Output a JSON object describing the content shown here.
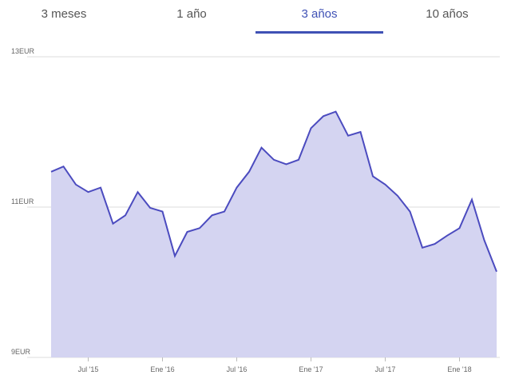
{
  "tabs": {
    "items": [
      "3 meses",
      "1 año",
      "3 años",
      "10 años"
    ],
    "active": 2
  },
  "chart_data": {
    "type": "area",
    "x": [
      "2015-04",
      "2015-05",
      "2015-06",
      "2015-07",
      "2015-08",
      "2015-09",
      "2015-10",
      "2015-11",
      "2015-12",
      "2016-01",
      "2016-02",
      "2016-03",
      "2016-04",
      "2016-05",
      "2016-06",
      "2016-07",
      "2016-08",
      "2016-09",
      "2016-10",
      "2016-11",
      "2016-12",
      "2017-01",
      "2017-02",
      "2017-03",
      "2017-04",
      "2017-05",
      "2017-06",
      "2017-07",
      "2017-08",
      "2017-09",
      "2017-10",
      "2017-11",
      "2017-12",
      "2018-01",
      "2018-02",
      "2018-03",
      "2018-04"
    ],
    "values": [
      11.47,
      11.54,
      11.3,
      11.2,
      11.26,
      10.78,
      10.89,
      11.2,
      10.99,
      10.94,
      10.35,
      10.67,
      10.72,
      10.89,
      10.94,
      11.26,
      11.47,
      11.79,
      11.63,
      11.57,
      11.63,
      12.05,
      12.21,
      12.27,
      11.95,
      12.0,
      11.41,
      11.3,
      11.15,
      10.94,
      10.46,
      10.51,
      10.62,
      10.72,
      11.1,
      10.56,
      10.14
    ],
    "color": "#4b4bbf",
    "fill": "#d4d4f1",
    "xlim": [
      "2015-04",
      "2018-04"
    ],
    "xticks": [
      {
        "value": "2015-07",
        "label": "Jul '15"
      },
      {
        "value": "2016-01",
        "label": "Ene '16"
      },
      {
        "value": "2016-07",
        "label": "Jul '16"
      },
      {
        "value": "2017-01",
        "label": "Ene '17"
      },
      {
        "value": "2017-07",
        "label": "Jul '17"
      },
      {
        "value": "2018-01",
        "label": "Ene '18"
      }
    ],
    "ylim": [
      9,
      13
    ],
    "yticks": [
      {
        "value": 9,
        "label": "9EUR"
      },
      {
        "value": 11,
        "label": "11EUR"
      },
      {
        "value": 13,
        "label": "13EUR"
      }
    ],
    "grid": true
  }
}
